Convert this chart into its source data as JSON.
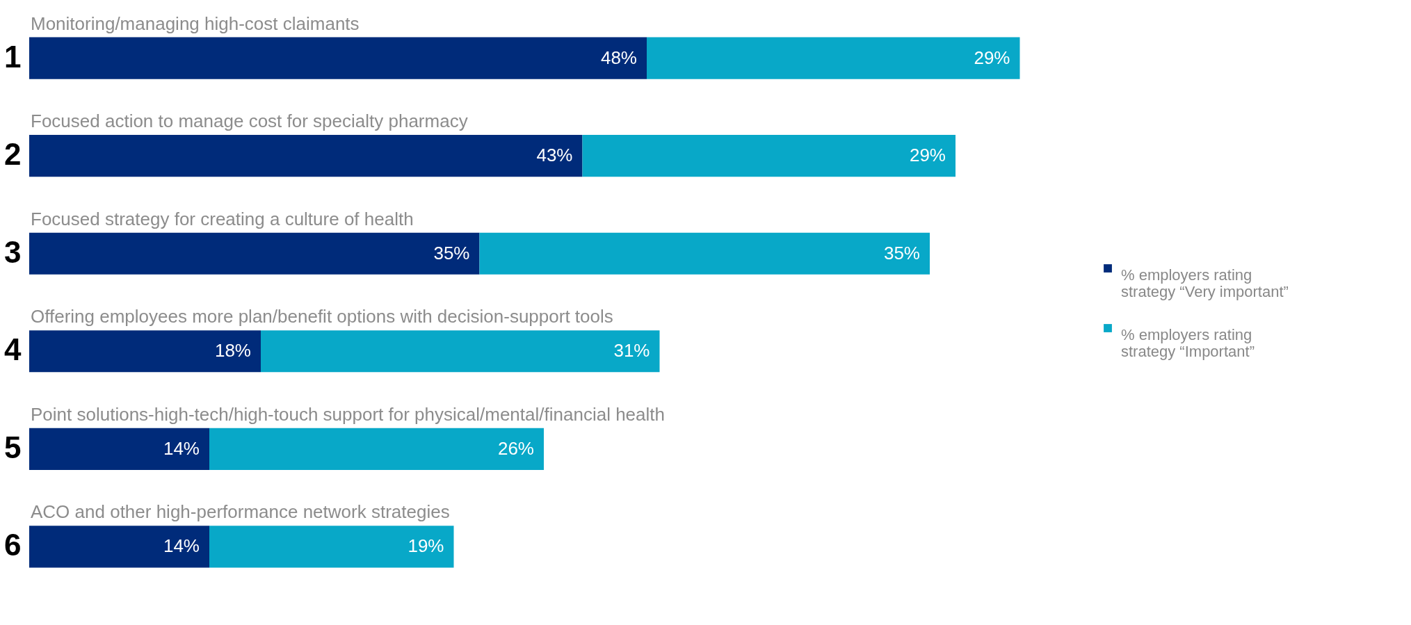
{
  "chart_data": {
    "type": "bar",
    "orientation": "horizontal",
    "stacked": true,
    "categories": [
      "1",
      "2",
      "3",
      "4",
      "5",
      "6"
    ],
    "series": [
      {
        "name": "% employers rating strategy “Very important”",
        "color": "#002b7a",
        "values": [
          48,
          43,
          35,
          18,
          14,
          14
        ],
        "value_labels": [
          "48%",
          "43%",
          "35%",
          "18%",
          "14%",
          "14%"
        ]
      },
      {
        "name": "% employers rating strategy “Important”",
        "color": "#08a8c8",
        "values": [
          29,
          29,
          35,
          31,
          26,
          19
        ],
        "value_labels": [
          "29%",
          "29%",
          "35%",
          "31%",
          "26%",
          "19%"
        ]
      }
    ],
    "annotations": [
      "Monitoring/managing  high-cost claimants",
      "Focused action to manage cost for specialty pharmacy",
      "Focused strategy for creating a culture of health",
      "Offering employees more plan/benefit  options with decision-support tools",
      "Point solutions-high-tech/high-touch  support for physical/mental/financial  health",
      "ACO and other high-performance network strategies"
    ],
    "tick_labels": "y",
    "grid": false,
    "legend": "right"
  }
}
